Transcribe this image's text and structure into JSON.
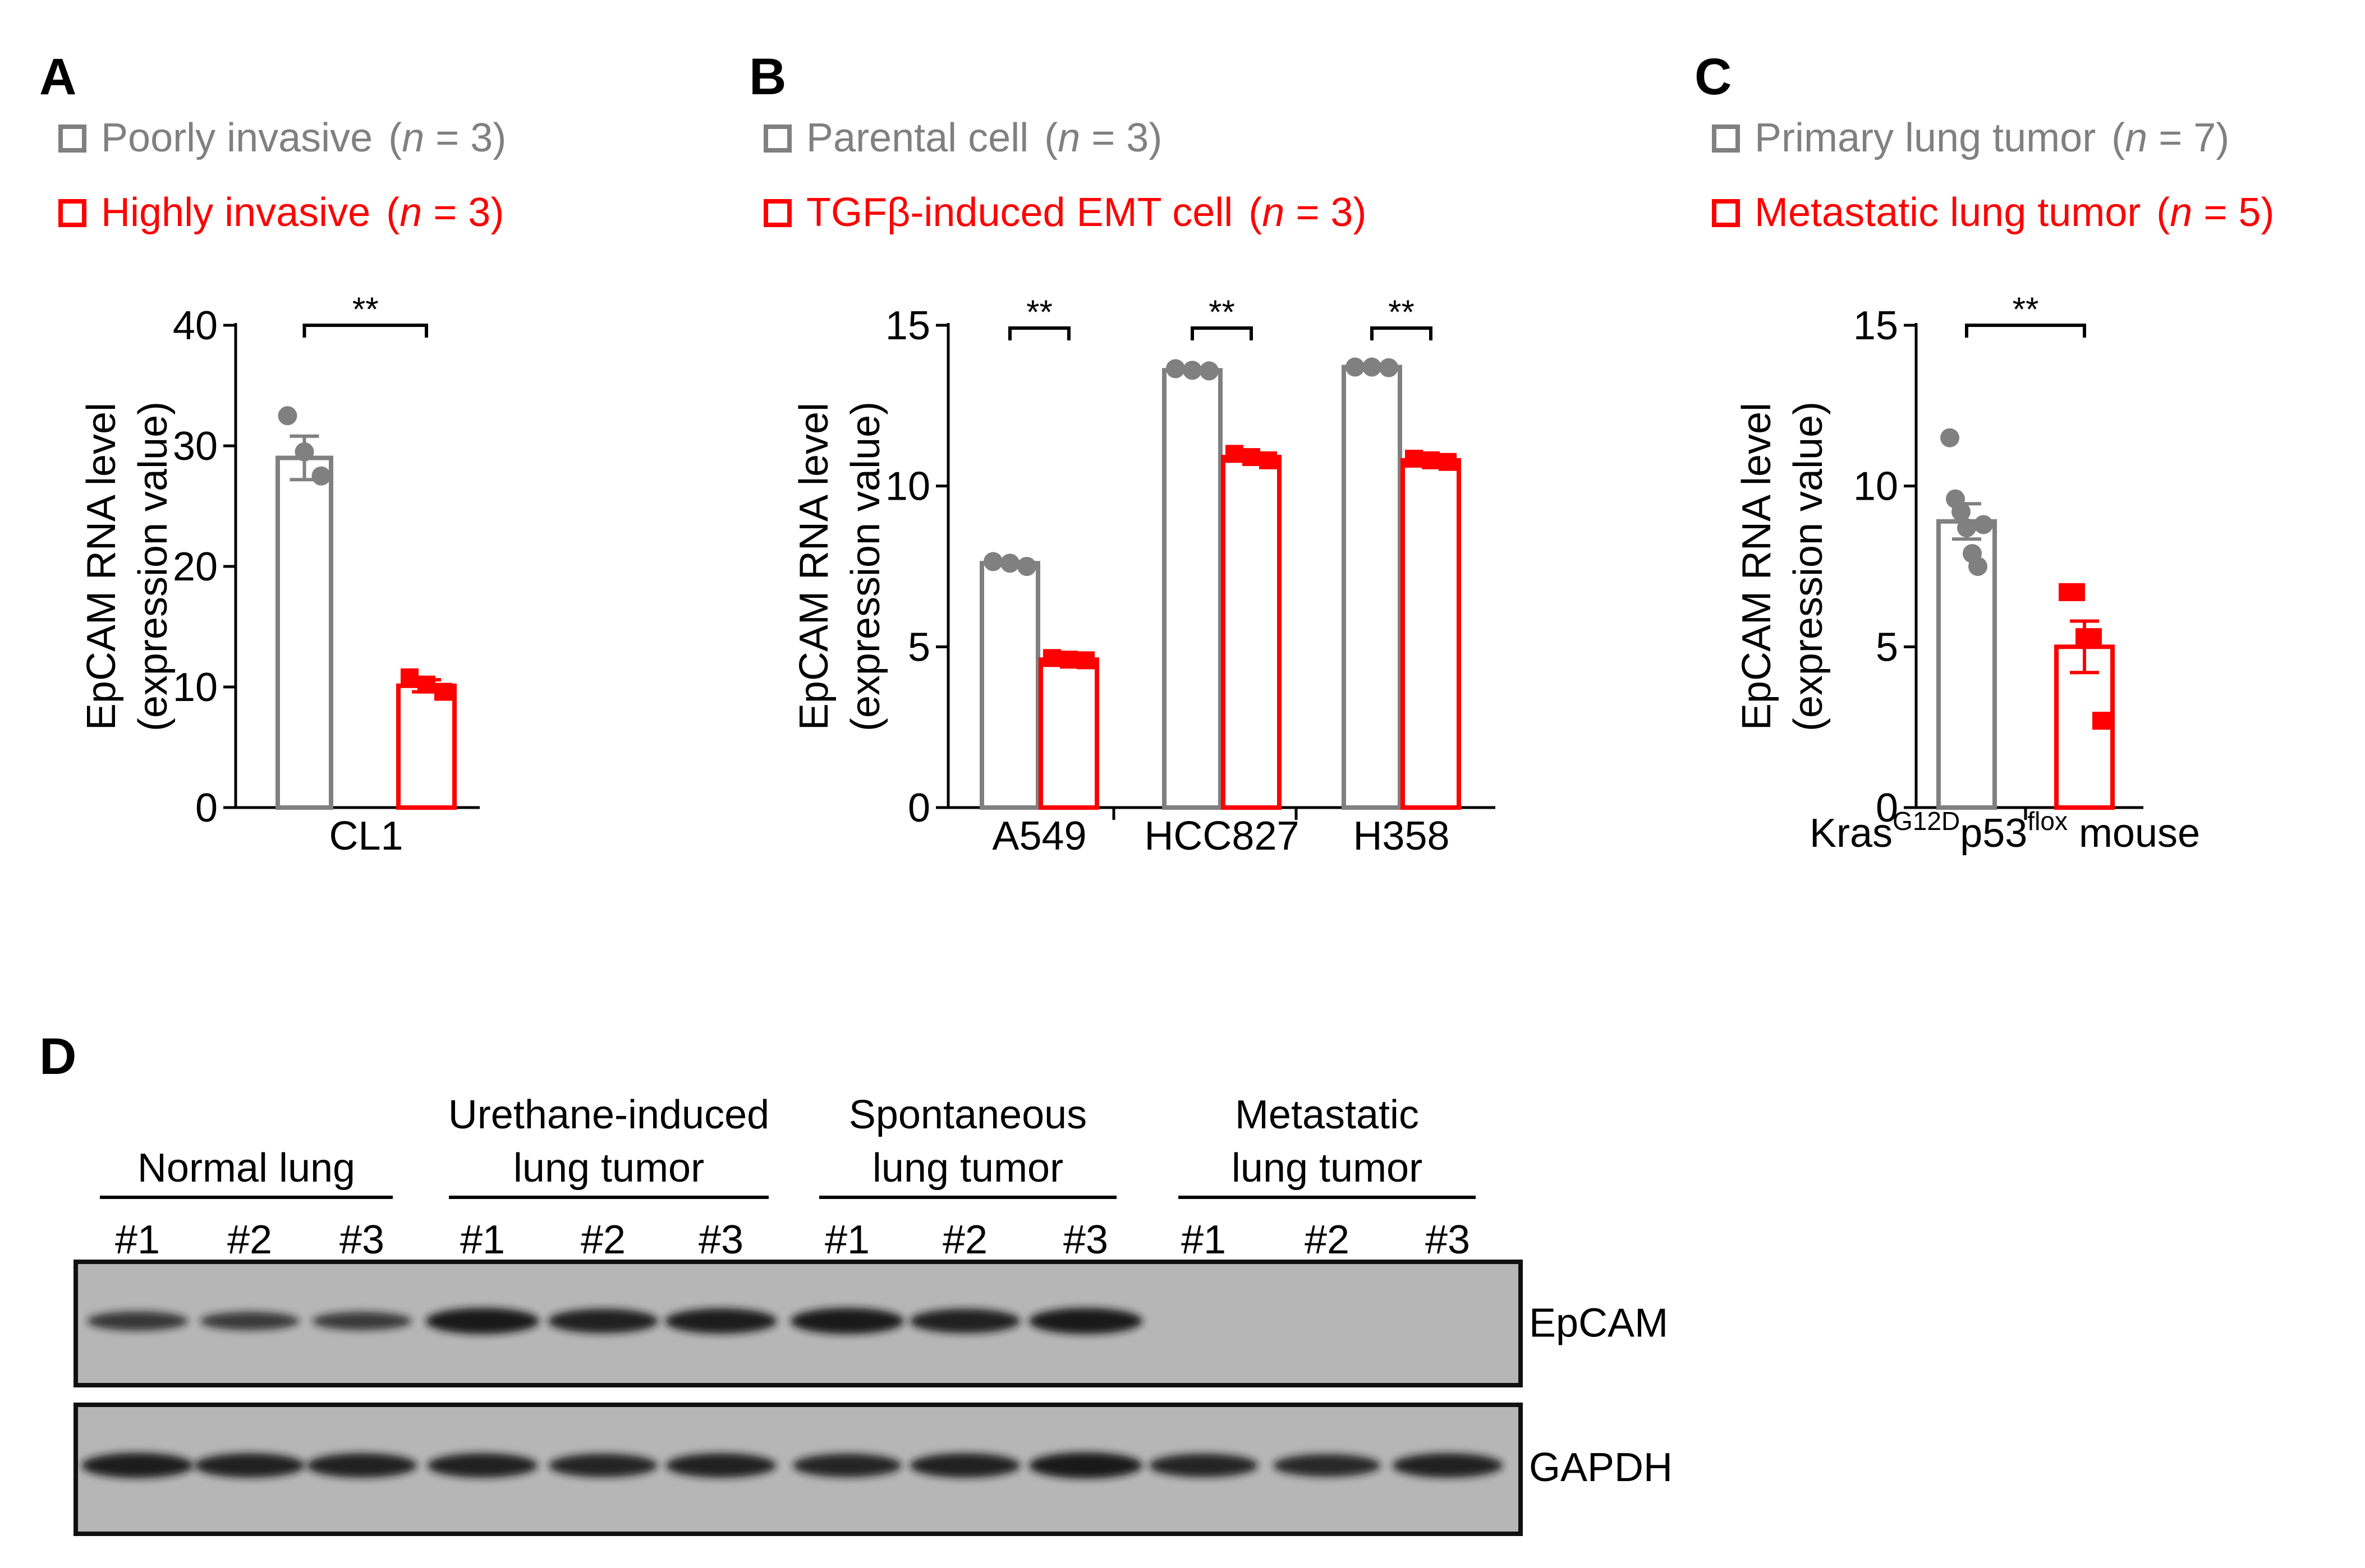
{
  "colors": {
    "gray": "#808080",
    "red": "#ff0000",
    "black": "#000000",
    "blot_bg": "#b6b6b6",
    "band": "#141414"
  },
  "chart_data": [
    {
      "panel": "A",
      "type": "bar",
      "legend": [
        {
          "label": "Poorly invasive",
          "n_prefix": "(",
          "n_var": "n",
          "n_value": " = 3)",
          "color": "#808080"
        },
        {
          "label": "Highly invasive",
          "n_prefix": "(",
          "n_var": "n",
          "n_value": " = 3)",
          "color": "#ff0000"
        }
      ],
      "ylabel_lines": [
        "EpCAM RNA level",
        "(expression value)"
      ],
      "ylim": [
        0,
        40
      ],
      "yticks": [
        "0",
        "10",
        "20",
        "30",
        "40"
      ],
      "groups": [
        {
          "label": "CL1",
          "series": [
            {
              "name": "Poorly invasive",
              "mean": 29,
              "sem": 1.8,
              "points": [
                32.5,
                29.5,
                27.5
              ]
            },
            {
              "name": "Highly invasive",
              "mean": 10.1,
              "sem": 0.5,
              "points": [
                10.8,
                10.2,
                9.6
              ]
            }
          ],
          "significance": "**"
        }
      ]
    },
    {
      "panel": "B",
      "type": "bar",
      "legend": [
        {
          "label": "Parental cell",
          "n_prefix": "(",
          "n_var": "n",
          "n_value": " = 3)",
          "color": "#808080"
        },
        {
          "label": "TGFβ-induced EMT cell",
          "n_prefix": "(",
          "n_var": "n",
          "n_value": " = 3)",
          "color": "#ff0000"
        }
      ],
      "ylabel_lines": [
        "EpCAM RNA level",
        "(expression value)"
      ],
      "ylim": [
        0,
        15
      ],
      "yticks": [
        "0",
        "5",
        "10",
        "15"
      ],
      "groups": [
        {
          "label": "A549",
          "series": [
            {
              "name": "Parental cell",
              "mean": 7.6,
              "sem": 0.05,
              "points": [
                7.65,
                7.6,
                7.5
              ]
            },
            {
              "name": "TGFβ-induced EMT cell",
              "mean": 4.6,
              "sem": 0.04,
              "points": [
                4.65,
                4.6,
                4.58
              ]
            }
          ],
          "significance": "**"
        },
        {
          "label": "HCC827",
          "series": [
            {
              "name": "Parental cell",
              "mean": 13.6,
              "sem": 0.03,
              "points": [
                13.65,
                13.6,
                13.58
              ]
            },
            {
              "name": "TGFβ-induced EMT cell",
              "mean": 10.9,
              "sem": 0.06,
              "points": [
                11.0,
                10.9,
                10.8
              ]
            }
          ],
          "significance": "**"
        },
        {
          "label": "H358",
          "series": [
            {
              "name": "Parental cell",
              "mean": 13.7,
              "sem": 0.02,
              "points": [
                13.7,
                13.7,
                13.68
              ]
            },
            {
              "name": "TGFβ-induced EMT cell",
              "mean": 10.8,
              "sem": 0.04,
              "points": [
                10.85,
                10.8,
                10.75
              ]
            }
          ],
          "significance": "**"
        }
      ]
    },
    {
      "panel": "C",
      "type": "bar",
      "legend": [
        {
          "label": "Primary lung tumor",
          "n_prefix": "(",
          "n_var": "n",
          "n_value": " = 7)",
          "color": "#808080"
        },
        {
          "label": "Metastatic lung tumor",
          "n_prefix": "(",
          "n_var": "n",
          "n_value": " = 5)",
          "color": "#ff0000"
        }
      ],
      "ylabel_lines": [
        "EpCAM RNA level",
        "(expression value)"
      ],
      "ylim": [
        0,
        15
      ],
      "yticks": [
        "0",
        "5",
        "10",
        "15"
      ],
      "xlabel": {
        "base1": "Kras",
        "sup1": "G12D",
        "base2": "p53",
        "sup2": "flox",
        "tail": " mouse"
      },
      "groups": [
        {
          "label": "",
          "series": [
            {
              "name": "Primary lung tumor",
              "mean": 8.9,
              "sem": 0.55,
              "points": [
                11.5,
                9.6,
                9.2,
                8.7,
                7.9,
                7.5,
                8.8
              ]
            },
            {
              "name": "Metastatic lung tumor",
              "mean": 5.0,
              "sem": 0.8,
              "points": [
                6.7,
                6.7,
                5.3,
                5.3,
                2.7
              ]
            }
          ],
          "significance": "**"
        }
      ]
    }
  ],
  "panel_labels": [
    "A",
    "B",
    "C",
    "D"
  ],
  "blot": {
    "groups": [
      {
        "lines": [
          "Normal lung"
        ]
      },
      {
        "lines": [
          "Urethane-induced",
          "lung tumor"
        ]
      },
      {
        "lines": [
          "Spontaneous",
          "lung tumor"
        ]
      },
      {
        "lines": [
          "Metastatic",
          "lung tumor"
        ]
      }
    ],
    "lane_labels": [
      "#1",
      "#2",
      "#3",
      "#1",
      "#2",
      "#3",
      "#1",
      "#2",
      "#3",
      "#1",
      "#2",
      "#3"
    ],
    "rows": [
      {
        "label": "EpCAM",
        "intensity": [
          0.55,
          0.5,
          0.5,
          0.95,
          0.85,
          0.9,
          0.95,
          0.85,
          0.95,
          0,
          0,
          0
        ]
      },
      {
        "label": "GAPDH",
        "intensity": [
          0.9,
          0.85,
          0.85,
          0.85,
          0.8,
          0.85,
          0.8,
          0.85,
          0.95,
          0.8,
          0.75,
          0.85
        ]
      }
    ]
  }
}
